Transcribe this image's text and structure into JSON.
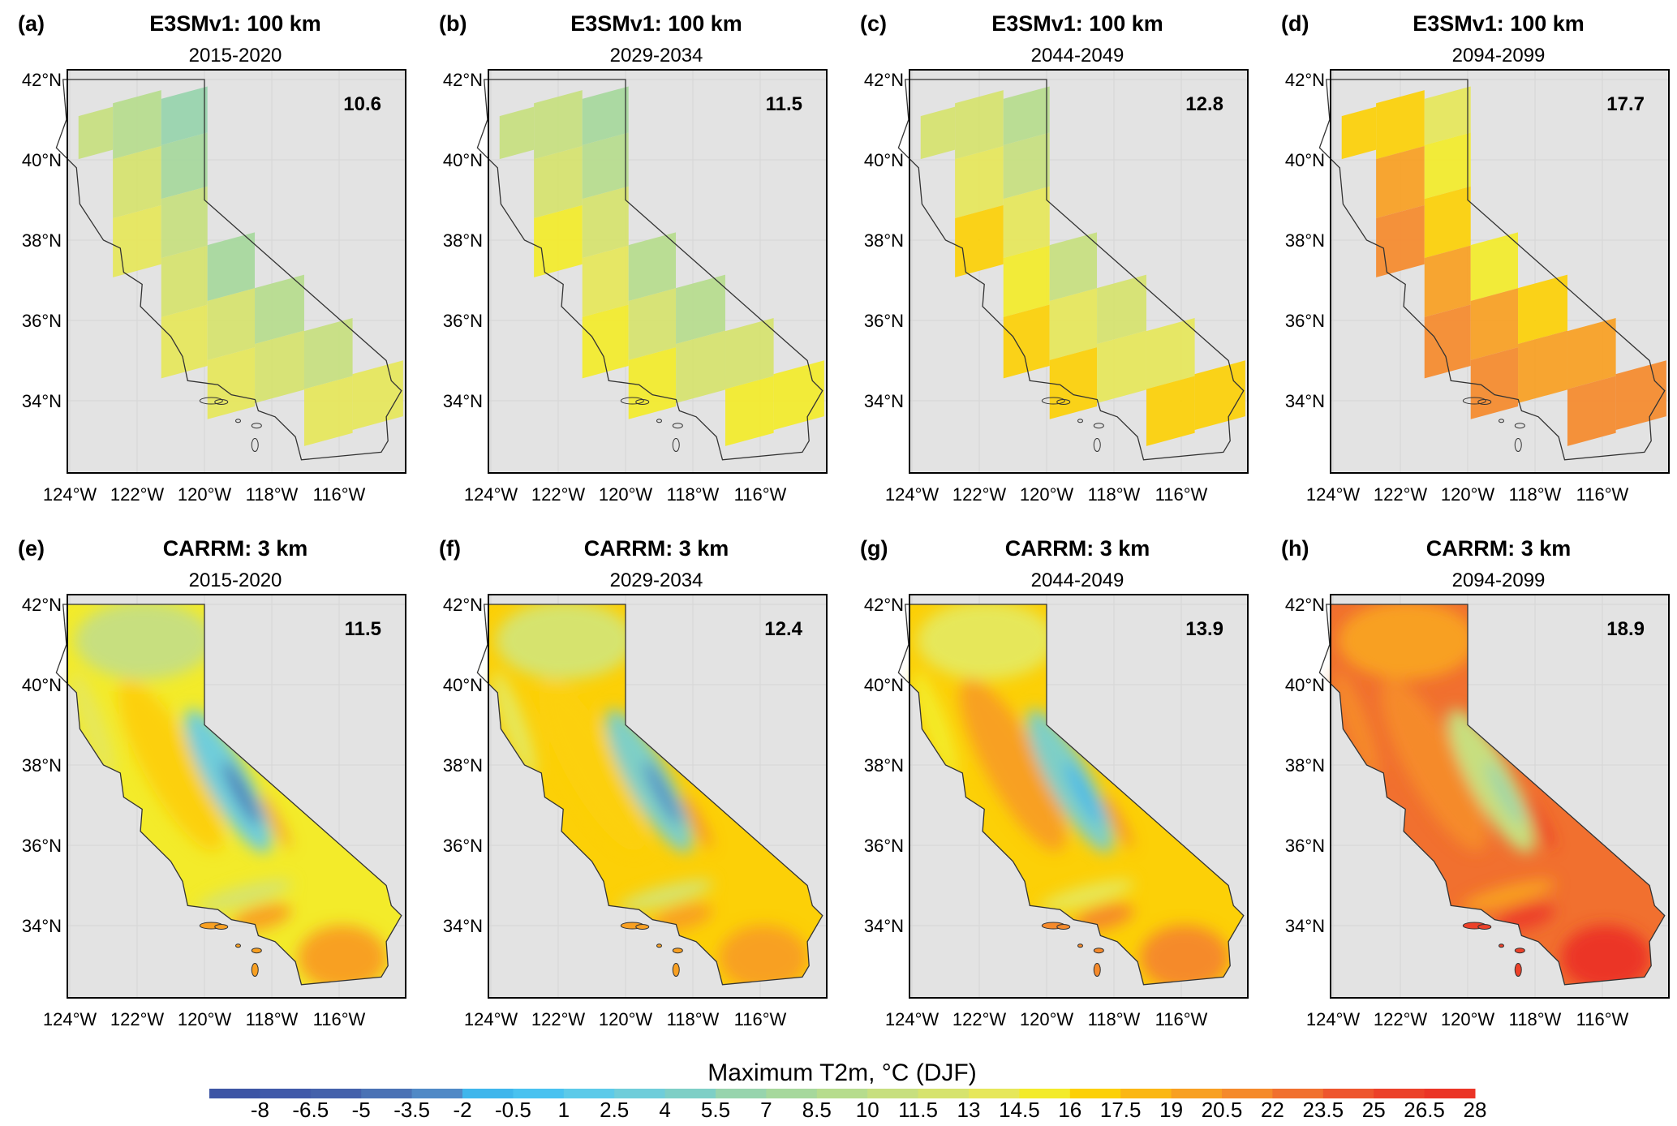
{
  "panels": [
    {
      "letter": "(a)",
      "title": "E3SMv1: 100 km",
      "period": "2015-2020",
      "mean_value": "10.6",
      "type": "coarse",
      "cell_values": [
        10,
        9.5,
        11.5,
        14.2,
        5.8,
        7.5,
        11,
        12,
        14,
        7.2,
        11.5,
        13.8,
        8.8,
        11.5,
        11,
        14,
        14
      ]
    },
    {
      "letter": "(b)",
      "title": "E3SMv1: 100 km",
      "period": "2029-2034",
      "mean_value": "11.5",
      "type": "coarse",
      "cell_values": [
        11,
        10.5,
        12.5,
        15,
        8,
        9,
        12,
        13,
        15,
        9,
        12.5,
        15,
        9.5,
        12.5,
        12,
        15,
        15
      ]
    },
    {
      "letter": "(c)",
      "title": "E3SMv1: 100 km",
      "period": "2044-2049",
      "mean_value": "12.8",
      "type": "coarse",
      "cell_values": [
        12,
        11.5,
        13.5,
        16.5,
        9.5,
        10.5,
        13,
        14.5,
        16.5,
        10.5,
        14,
        17,
        11.5,
        13.5,
        13.5,
        16.5,
        16.5
      ]
    },
    {
      "letter": "(d)",
      "title": "E3SMv1: 100 km",
      "period": "2094-2099",
      "mean_value": "17.7",
      "type": "coarse",
      "cell_values": [
        17,
        16.5,
        20,
        21,
        13.5,
        15.5,
        17.2,
        19.5,
        21.5,
        15,
        19.8,
        21.2,
        16.5,
        19.5,
        19.8,
        20.5,
        21
      ]
    },
    {
      "letter": "(e)",
      "title": "CARRM: 3 km",
      "period": "2015-2020",
      "mean_value": "11.5",
      "type": "fine",
      "field_values": {
        "base": 15.5,
        "north": 11,
        "valley": 16.5,
        "sierra": 3.5,
        "crest": -5,
        "south": 19.5,
        "socal": 19.5,
        "owens": 20
      }
    },
    {
      "letter": "(f)",
      "title": "CARRM: 3 km",
      "period": "2029-2034",
      "mean_value": "12.4",
      "type": "fine",
      "field_values": {
        "base": 16,
        "north": 11.5,
        "valley": 17,
        "sierra": 4.5,
        "crest": -3,
        "south": 20,
        "socal": 20,
        "owens": 20.5
      }
    },
    {
      "letter": "(g)",
      "title": "CARRM: 3 km",
      "period": "2044-2049",
      "mean_value": "13.9",
      "type": "fine",
      "field_values": {
        "base": 16.8,
        "north": 13,
        "valley": 19.5,
        "sierra": 5,
        "crest": -2,
        "south": 21,
        "socal": 20.5,
        "owens": 21
      }
    },
    {
      "letter": "(h)",
      "title": "CARRM: 3 km",
      "period": "2094-2099",
      "mean_value": "18.9",
      "type": "fine",
      "field_values": {
        "base": 22.5,
        "north": 19.5,
        "valley": 21.5,
        "sierra": 11,
        "crest": 6,
        "south": 26.8,
        "socal": 25.5,
        "owens": 26.5
      }
    }
  ],
  "axes": {
    "lat_labels": [
      "42°N",
      "40°N",
      "38°N",
      "36°N",
      "34°N"
    ],
    "lat_values": [
      42,
      40,
      38,
      36,
      34
    ],
    "lon_labels": [
      "124°W",
      "122°W",
      "120°W",
      "118°W",
      "116°W"
    ],
    "lon_values": [
      -124,
      -122,
      -120,
      -118,
      -116
    ]
  },
  "colorbar": {
    "title": "Maximum T2m, °C (DJF)",
    "levels": [
      -8,
      -6.5,
      -5,
      -3.5,
      -2,
      -0.5,
      1,
      2.5,
      4,
      5.5,
      7,
      8.5,
      10,
      11.5,
      13,
      14.5,
      16,
      17.5,
      19,
      20.5,
      22,
      23.5,
      25,
      26.5,
      28
    ],
    "labels": [
      "-8",
      "-6.5",
      "-5",
      "-3.5",
      "-2",
      "-0.5",
      "1",
      "2.5",
      "4",
      "5.5",
      "7",
      "8.5",
      "10",
      "11.5",
      "13",
      "14.5",
      "16",
      "17.5",
      "19",
      "20.5",
      "22",
      "23.5",
      "25",
      "26.5",
      "28"
    ],
    "colors": [
      "#3d55a5",
      "#4059a9",
      "#4461ab",
      "#4a72b5",
      "#5089c6",
      "#3fb6ec",
      "#49c2f0",
      "#5ccae9",
      "#6fcdda",
      "#7ecfc6",
      "#97d4ad",
      "#a6d89c",
      "#b6dc8d",
      "#c7df7f",
      "#d6e36e",
      "#e6e75a",
      "#f3eb2a",
      "#fcd007",
      "#fbb714",
      "#f8a022",
      "#f58a2b",
      "#f1702f",
      "#ee552d",
      "#ec4129",
      "#eb3426"
    ]
  },
  "style": {
    "map_background": "#e3e3e3",
    "outline": "#333333"
  }
}
